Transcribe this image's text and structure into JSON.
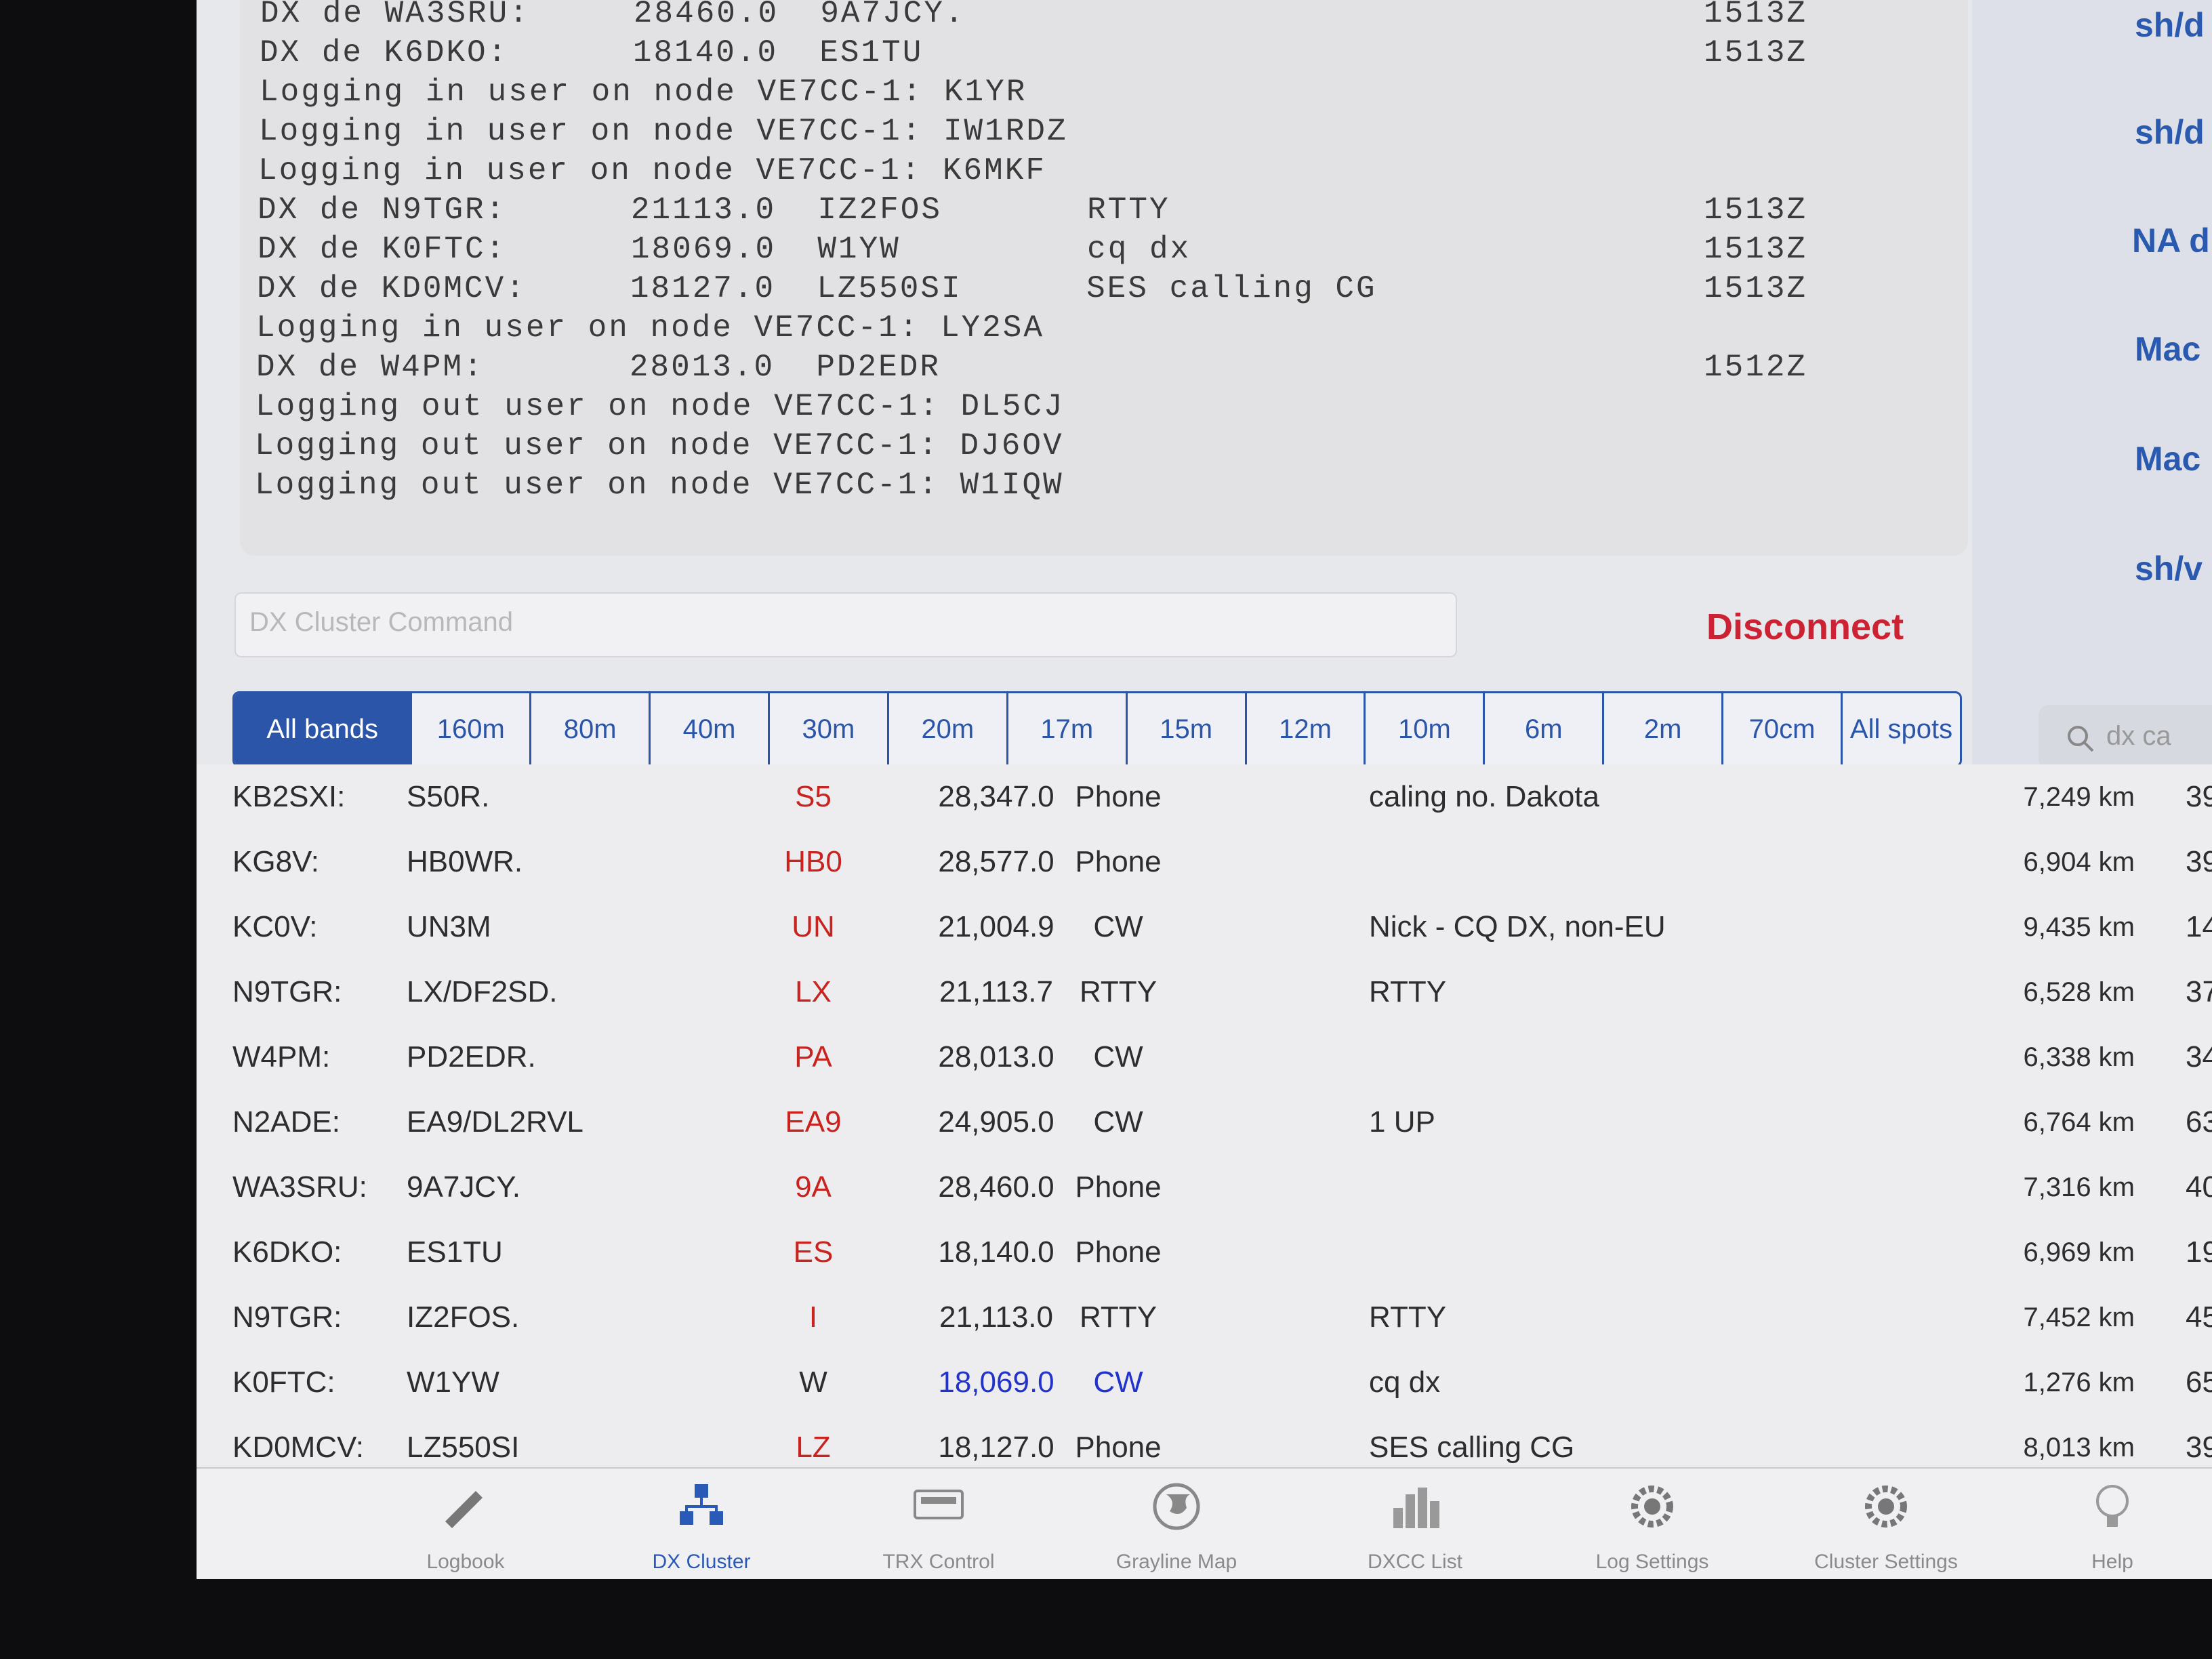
{
  "terminal": {
    "lines": [
      {
        "text": "DX de WA3SRU:     28460.0  9A7JCY.",
        "time": "1513Z"
      },
      {
        "text": "DX de K6DKO:      18140.0  ES1TU",
        "time": "1513Z"
      },
      {
        "text": "Logging in user on node VE7CC-1: K1YR"
      },
      {
        "text": "Logging in user on node VE7CC-1: IW1RDZ"
      },
      {
        "text": "Logging in user on node VE7CC-1: K6MKF"
      },
      {
        "text": "DX de N9TGR:      21113.0  IZ2FOS       RTTY",
        "time": "1513Z"
      },
      {
        "text": "DX de K0FTC:      18069.0  W1YW         cq dx",
        "time": "1513Z"
      },
      {
        "text": "DX de KD0MCV:     18127.0  LZ550SI      SES calling CG",
        "time": "1513Z"
      },
      {
        "text": "Logging in user on node VE7CC-1: LY2SA"
      },
      {
        "text": "DX de W4PM:       28013.0  PD2EDR",
        "time": "1512Z"
      },
      {
        "text": "Logging out user on node VE7CC-1: DL5CJ"
      },
      {
        "text": "Logging out user on node VE7CC-1: DJ6OV"
      },
      {
        "text": "Logging out user on node VE7CC-1: W1IQW"
      }
    ]
  },
  "sidebar": {
    "items": [
      "sh/d",
      "sh/d",
      "NA d",
      "Mac",
      "Mac",
      "sh/v"
    ]
  },
  "command": {
    "placeholder": "DX Cluster Command",
    "button": "Disconnect"
  },
  "bands": [
    {
      "label": "All bands",
      "selected": true
    },
    {
      "label": "160m"
    },
    {
      "label": "80m"
    },
    {
      "label": "40m"
    },
    {
      "label": "30m"
    },
    {
      "label": "20m"
    },
    {
      "label": "17m"
    },
    {
      "label": "15m"
    },
    {
      "label": "12m"
    },
    {
      "label": "10m"
    },
    {
      "label": "6m"
    },
    {
      "label": "2m"
    },
    {
      "label": "70cm"
    },
    {
      "label": "All spots"
    }
  ],
  "search": {
    "placeholder": "dx ca"
  },
  "spots": {
    "rows": [
      {
        "cells": [
          "KB2SXI:",
          "S50R.",
          "S5",
          "28,347.0",
          "Phone",
          "caling no. Dakota",
          "7,249 km",
          "39"
        ]
      },
      {
        "cells": [
          "KG8V:",
          "HB0WR.",
          "HB0",
          "28,577.0",
          "Phone",
          "",
          "6,904 km",
          "39"
        ]
      },
      {
        "cells": [
          "KC0V:",
          "UN3M",
          "UN",
          "21,004.9",
          "CW",
          "Nick - CQ DX, non-EU",
          "9,435 km",
          "14"
        ]
      },
      {
        "cells": [
          "N9TGR:",
          "LX/DF2SD.",
          "LX",
          "21,113.7",
          "RTTY",
          "RTTY",
          "6,528 km",
          "37"
        ]
      },
      {
        "cells": [
          "W4PM:",
          "PD2EDR.",
          "PA",
          "28,013.0",
          "CW",
          "",
          "6,338 km",
          "34"
        ]
      },
      {
        "cells": [
          "N2ADE:",
          "EA9/DL2RVL",
          "EA9",
          "24,905.0",
          "CW",
          "1 UP",
          "6,764 km",
          "63"
        ]
      },
      {
        "cells": [
          "WA3SRU:",
          "9A7JCY.",
          "9A",
          "28,460.0",
          "Phone",
          "",
          "7,316 km",
          "40"
        ]
      },
      {
        "cells": [
          "K6DKO:",
          "ES1TU",
          "ES",
          "18,140.0",
          "Phone",
          "",
          "6,969 km",
          "19"
        ]
      },
      {
        "cells": [
          "N9TGR:",
          "IZ2FOS.",
          "I",
          "21,113.0",
          "RTTY",
          "RTTY",
          "7,452 km",
          "45"
        ]
      },
      {
        "cells": [
          "K0FTC:",
          "W1YW",
          "W",
          "18,069.0",
          "CW",
          "cq dx",
          "1,276 km",
          "65°"
        ],
        "prefix_color": "#2d2d2d",
        "freq_color": "#2233cc"
      },
      {
        "cells": [
          "KD0MCV:",
          "LZ550SI",
          "LZ",
          "18,127.0",
          "Phone",
          "SES calling CG",
          "8,013 km",
          "39°"
        ]
      }
    ]
  },
  "tabs": [
    {
      "label": "Logbook"
    },
    {
      "label": "DX Cluster",
      "selected": true
    },
    {
      "label": "TRX Control"
    },
    {
      "label": "Grayline Map"
    },
    {
      "label": "DXCC List"
    },
    {
      "label": "Log Settings"
    },
    {
      "label": "Cluster Settings"
    },
    {
      "label": "Help"
    }
  ]
}
